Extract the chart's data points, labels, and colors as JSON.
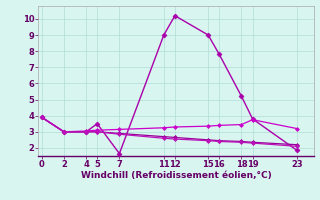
{
  "lines": [
    {
      "x": [
        0,
        2,
        4,
        5,
        7,
        11,
        12,
        15,
        16,
        18,
        19,
        23
      ],
      "y": [
        3.9,
        3.0,
        3.0,
        3.5,
        1.65,
        9.0,
        10.2,
        9.0,
        7.8,
        5.2,
        3.8,
        1.85
      ],
      "color": "#aa00aa",
      "linewidth": 1.0,
      "marker": "D",
      "markersize": 2.5
    },
    {
      "x": [
        0,
        2,
        4,
        5,
        7,
        11,
        12,
        15,
        16,
        18,
        19,
        23
      ],
      "y": [
        3.9,
        3.0,
        3.05,
        3.1,
        3.15,
        3.25,
        3.3,
        3.35,
        3.4,
        3.45,
        3.75,
        3.2
      ],
      "color": "#cc00cc",
      "linewidth": 0.9,
      "marker": "D",
      "markersize": 2.0
    },
    {
      "x": [
        0,
        2,
        4,
        5,
        7,
        11,
        12,
        15,
        16,
        18,
        19,
        23
      ],
      "y": [
        3.9,
        3.0,
        3.0,
        3.0,
        2.9,
        2.7,
        2.65,
        2.5,
        2.45,
        2.4,
        2.35,
        2.2
      ],
      "color": "#990099",
      "linewidth": 0.9,
      "marker": "D",
      "markersize": 2.0
    },
    {
      "x": [
        0,
        2,
        4,
        5,
        7,
        11,
        12,
        15,
        16,
        18,
        19,
        23
      ],
      "y": [
        3.9,
        3.0,
        3.0,
        3.0,
        2.85,
        2.6,
        2.55,
        2.45,
        2.4,
        2.35,
        2.3,
        2.1
      ],
      "color": "#bb11bb",
      "linewidth": 0.9,
      "marker": "D",
      "markersize": 2.0
    }
  ],
  "xticks": [
    0,
    2,
    4,
    5,
    7,
    11,
    12,
    15,
    16,
    18,
    19,
    23
  ],
  "yticks": [
    2,
    3,
    4,
    5,
    6,
    7,
    8,
    9,
    10
  ],
  "xlim": [
    -0.3,
    24.5
  ],
  "ylim": [
    1.5,
    10.8
  ],
  "xlabel": "Windchill (Refroidissement éolien,°C)",
  "xlabel_fontsize": 6.5,
  "xlabel_color": "#660066",
  "tick_fontsize": 6.0,
  "tick_color": "#660066",
  "background_color": "#d8f5f0",
  "grid_color": "#b0ddd8",
  "spine_color": "#aaaaaa"
}
